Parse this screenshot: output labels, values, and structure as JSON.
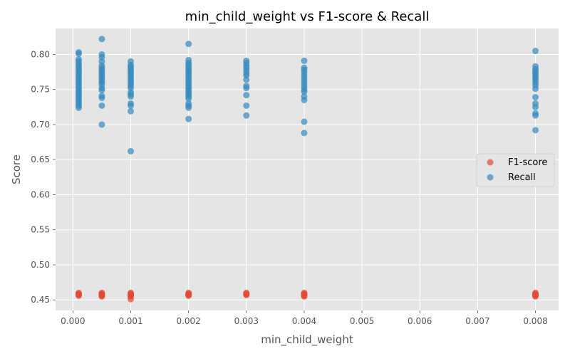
{
  "chart_data": {
    "type": "scatter",
    "title": "min_child_weight vs F1-score & Recall",
    "xlabel": "min_child_weight",
    "ylabel": "Score",
    "xlim": [
      -0.0003,
      0.0084
    ],
    "ylim": [
      0.435,
      0.837
    ],
    "xticks": [
      0.0,
      0.001,
      0.002,
      0.003,
      0.004,
      0.005,
      0.006,
      0.007,
      0.008
    ],
    "xtick_labels": [
      "0.000",
      "0.001",
      "0.002",
      "0.003",
      "0.004",
      "0.005",
      "0.006",
      "0.007",
      "0.008"
    ],
    "yticks": [
      0.45,
      0.5,
      0.55,
      0.6,
      0.65,
      0.7,
      0.75,
      0.8
    ],
    "ytick_labels": [
      "0.45",
      "0.50",
      "0.55",
      "0.60",
      "0.65",
      "0.70",
      "0.75",
      "0.80"
    ],
    "grid": true,
    "legend_position": "center-right",
    "series": [
      {
        "name": "F1-score",
        "color": "#E24A33",
        "points": [
          [
            0.0001,
            0.456
          ],
          [
            0.0001,
            0.457
          ],
          [
            0.0001,
            0.458
          ],
          [
            0.0001,
            0.459
          ],
          [
            0.0001,
            0.46
          ],
          [
            0.0005,
            0.455
          ],
          [
            0.0005,
            0.456
          ],
          [
            0.0005,
            0.457
          ],
          [
            0.0005,
            0.458
          ],
          [
            0.0005,
            0.459
          ],
          [
            0.0005,
            0.46
          ],
          [
            0.001,
            0.451
          ],
          [
            0.001,
            0.455
          ],
          [
            0.001,
            0.456
          ],
          [
            0.001,
            0.457
          ],
          [
            0.001,
            0.458
          ],
          [
            0.001,
            0.459
          ],
          [
            0.001,
            0.46
          ],
          [
            0.002,
            0.456
          ],
          [
            0.002,
            0.457
          ],
          [
            0.002,
            0.458
          ],
          [
            0.002,
            0.459
          ],
          [
            0.002,
            0.46
          ],
          [
            0.003,
            0.457
          ],
          [
            0.003,
            0.458
          ],
          [
            0.003,
            0.459
          ],
          [
            0.003,
            0.46
          ],
          [
            0.004,
            0.455
          ],
          [
            0.004,
            0.456
          ],
          [
            0.004,
            0.457
          ],
          [
            0.004,
            0.458
          ],
          [
            0.004,
            0.459
          ],
          [
            0.004,
            0.46
          ],
          [
            0.008,
            0.455
          ],
          [
            0.008,
            0.456
          ],
          [
            0.008,
            0.457
          ],
          [
            0.008,
            0.458
          ],
          [
            0.008,
            0.459
          ],
          [
            0.008,
            0.46
          ]
        ]
      },
      {
        "name": "Recall",
        "color": "#348ABD",
        "points": [
          [
            0.0001,
            0.724
          ],
          [
            0.0001,
            0.727
          ],
          [
            0.0001,
            0.73
          ],
          [
            0.0001,
            0.733
          ],
          [
            0.0001,
            0.736
          ],
          [
            0.0001,
            0.739
          ],
          [
            0.0001,
            0.742
          ],
          [
            0.0001,
            0.745
          ],
          [
            0.0001,
            0.748
          ],
          [
            0.0001,
            0.751
          ],
          [
            0.0001,
            0.754
          ],
          [
            0.0001,
            0.757
          ],
          [
            0.0001,
            0.76
          ],
          [
            0.0001,
            0.763
          ],
          [
            0.0001,
            0.766
          ],
          [
            0.0001,
            0.769
          ],
          [
            0.0001,
            0.772
          ],
          [
            0.0001,
            0.775
          ],
          [
            0.0001,
            0.778
          ],
          [
            0.0001,
            0.781
          ],
          [
            0.0001,
            0.784
          ],
          [
            0.0001,
            0.787
          ],
          [
            0.0001,
            0.79
          ],
          [
            0.0001,
            0.793
          ],
          [
            0.0001,
            0.801
          ],
          [
            0.0001,
            0.803
          ],
          [
            0.0005,
            0.7
          ],
          [
            0.0005,
            0.727
          ],
          [
            0.0005,
            0.738
          ],
          [
            0.0005,
            0.741
          ],
          [
            0.0005,
            0.749
          ],
          [
            0.0005,
            0.752
          ],
          [
            0.0005,
            0.757
          ],
          [
            0.0005,
            0.76
          ],
          [
            0.0005,
            0.763
          ],
          [
            0.0005,
            0.766
          ],
          [
            0.0005,
            0.769
          ],
          [
            0.0005,
            0.772
          ],
          [
            0.0005,
            0.775
          ],
          [
            0.0005,
            0.778
          ],
          [
            0.0005,
            0.781
          ],
          [
            0.0005,
            0.784
          ],
          [
            0.0005,
            0.79
          ],
          [
            0.0005,
            0.796
          ],
          [
            0.0005,
            0.8
          ],
          [
            0.0005,
            0.822
          ],
          [
            0.001,
            0.662
          ],
          [
            0.001,
            0.719
          ],
          [
            0.001,
            0.727
          ],
          [
            0.001,
            0.73
          ],
          [
            0.001,
            0.74
          ],
          [
            0.001,
            0.743
          ],
          [
            0.001,
            0.746
          ],
          [
            0.001,
            0.752
          ],
          [
            0.001,
            0.755
          ],
          [
            0.001,
            0.758
          ],
          [
            0.001,
            0.761
          ],
          [
            0.001,
            0.764
          ],
          [
            0.001,
            0.767
          ],
          [
            0.001,
            0.77
          ],
          [
            0.001,
            0.773
          ],
          [
            0.001,
            0.776
          ],
          [
            0.001,
            0.779
          ],
          [
            0.001,
            0.782
          ],
          [
            0.001,
            0.785
          ],
          [
            0.001,
            0.79
          ],
          [
            0.002,
            0.708
          ],
          [
            0.002,
            0.724
          ],
          [
            0.002,
            0.727
          ],
          [
            0.002,
            0.73
          ],
          [
            0.002,
            0.737
          ],
          [
            0.002,
            0.74
          ],
          [
            0.002,
            0.743
          ],
          [
            0.002,
            0.746
          ],
          [
            0.002,
            0.749
          ],
          [
            0.002,
            0.752
          ],
          [
            0.002,
            0.755
          ],
          [
            0.002,
            0.758
          ],
          [
            0.002,
            0.761
          ],
          [
            0.002,
            0.764
          ],
          [
            0.002,
            0.767
          ],
          [
            0.002,
            0.77
          ],
          [
            0.002,
            0.773
          ],
          [
            0.002,
            0.776
          ],
          [
            0.002,
            0.779
          ],
          [
            0.002,
            0.782
          ],
          [
            0.002,
            0.785
          ],
          [
            0.002,
            0.788
          ],
          [
            0.002,
            0.792
          ],
          [
            0.002,
            0.815
          ],
          [
            0.003,
            0.713
          ],
          [
            0.003,
            0.727
          ],
          [
            0.003,
            0.742
          ],
          [
            0.003,
            0.752
          ],
          [
            0.003,
            0.755
          ],
          [
            0.003,
            0.764
          ],
          [
            0.003,
            0.77
          ],
          [
            0.003,
            0.773
          ],
          [
            0.003,
            0.777
          ],
          [
            0.003,
            0.781
          ],
          [
            0.003,
            0.784
          ],
          [
            0.003,
            0.788
          ],
          [
            0.003,
            0.791
          ],
          [
            0.004,
            0.688
          ],
          [
            0.004,
            0.704
          ],
          [
            0.004,
            0.735
          ],
          [
            0.004,
            0.74
          ],
          [
            0.004,
            0.747
          ],
          [
            0.004,
            0.75
          ],
          [
            0.004,
            0.754
          ],
          [
            0.004,
            0.758
          ],
          [
            0.004,
            0.762
          ],
          [
            0.004,
            0.766
          ],
          [
            0.004,
            0.77
          ],
          [
            0.004,
            0.774
          ],
          [
            0.004,
            0.778
          ],
          [
            0.004,
            0.781
          ],
          [
            0.004,
            0.791
          ],
          [
            0.008,
            0.692
          ],
          [
            0.008,
            0.713
          ],
          [
            0.008,
            0.716
          ],
          [
            0.008,
            0.725
          ],
          [
            0.008,
            0.73
          ],
          [
            0.008,
            0.739
          ],
          [
            0.008,
            0.751
          ],
          [
            0.008,
            0.756
          ],
          [
            0.008,
            0.76
          ],
          [
            0.008,
            0.764
          ],
          [
            0.008,
            0.767
          ],
          [
            0.008,
            0.77
          ],
          [
            0.008,
            0.773
          ],
          [
            0.008,
            0.776
          ],
          [
            0.008,
            0.779
          ],
          [
            0.008,
            0.783
          ],
          [
            0.008,
            0.805
          ]
        ]
      }
    ]
  }
}
